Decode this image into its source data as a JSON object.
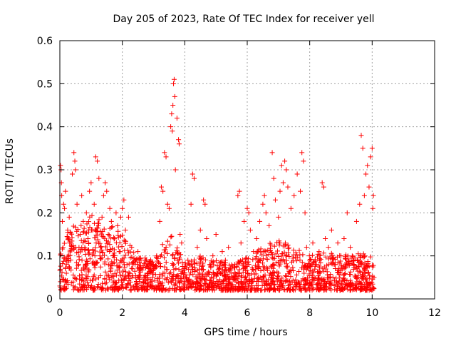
{
  "chart_data": {
    "type": "scatter",
    "title": "Day 205 of 2023, Rate Of TEC Index for receiver yell",
    "xlabel": "GPS time / hours",
    "ylabel": "ROTI / TECUs",
    "xlim": [
      0,
      12
    ],
    "ylim": [
      0,
      0.6
    ],
    "x_ticks": [
      0,
      2,
      4,
      6,
      8,
      10,
      12
    ],
    "y_ticks": [
      0,
      0.1,
      0.2,
      0.3,
      0.4,
      0.5,
      0.6
    ],
    "x_tick_labels": [
      "0",
      "2",
      "4",
      "6",
      "8",
      "10",
      "12"
    ],
    "y_tick_labels": [
      "0",
      "0.1",
      "0.2",
      "0.3",
      "0.4",
      "0.5",
      "0.6"
    ],
    "grid": true,
    "marker": "plus",
    "series": [
      {
        "name": "ROTI",
        "color": "#ff0000",
        "points": [
          [
            0.0,
            0.03
          ],
          [
            0.02,
            0.31
          ],
          [
            0.04,
            0.3
          ],
          [
            0.05,
            0.27
          ],
          [
            0.06,
            0.24
          ],
          [
            0.08,
            0.18
          ],
          [
            0.1,
            0.12
          ],
          [
            0.12,
            0.22
          ],
          [
            0.15,
            0.21
          ],
          [
            0.18,
            0.25
          ],
          [
            0.2,
            0.09
          ],
          [
            0.25,
            0.16
          ],
          [
            0.3,
            0.19
          ],
          [
            0.35,
            0.13
          ],
          [
            0.4,
            0.29
          ],
          [
            0.45,
            0.34
          ],
          [
            0.48,
            0.32
          ],
          [
            0.5,
            0.3
          ],
          [
            0.55,
            0.22
          ],
          [
            0.6,
            0.08
          ],
          [
            0.65,
            0.15
          ],
          [
            0.7,
            0.24
          ],
          [
            0.75,
            0.18
          ],
          [
            0.8,
            0.12
          ],
          [
            0.85,
            0.2
          ],
          [
            0.9,
            0.14
          ],
          [
            0.95,
            0.25
          ],
          [
            1.0,
            0.27
          ],
          [
            1.05,
            0.16
          ],
          [
            1.1,
            0.22
          ],
          [
            1.15,
            0.33
          ],
          [
            1.2,
            0.32
          ],
          [
            1.25,
            0.28
          ],
          [
            1.3,
            0.12
          ],
          [
            1.35,
            0.19
          ],
          [
            1.4,
            0.24
          ],
          [
            1.45,
            0.27
          ],
          [
            1.5,
            0.25
          ],
          [
            1.55,
            0.15
          ],
          [
            1.6,
            0.21
          ],
          [
            1.65,
            0.18
          ],
          [
            1.7,
            0.1
          ],
          [
            1.75,
            0.14
          ],
          [
            1.8,
            0.2
          ],
          [
            1.85,
            0.17
          ],
          [
            1.9,
            0.11
          ],
          [
            1.95,
            0.19
          ],
          [
            2.0,
            0.21
          ],
          [
            2.05,
            0.23
          ],
          [
            2.1,
            0.16
          ],
          [
            2.15,
            0.08
          ],
          [
            2.2,
            0.19
          ],
          [
            2.3,
            0.12
          ],
          [
            2.4,
            0.09
          ],
          [
            2.5,
            0.11
          ],
          [
            2.6,
            0.07
          ],
          [
            2.7,
            0.05
          ],
          [
            2.8,
            0.06
          ],
          [
            2.9,
            0.08
          ],
          [
            3.0,
            0.07
          ],
          [
            3.1,
            0.1
          ],
          [
            3.2,
            0.18
          ],
          [
            3.25,
            0.26
          ],
          [
            3.3,
            0.25
          ],
          [
            3.35,
            0.34
          ],
          [
            3.4,
            0.33
          ],
          [
            3.45,
            0.22
          ],
          [
            3.5,
            0.21
          ],
          [
            3.55,
            0.4
          ],
          [
            3.58,
            0.43
          ],
          [
            3.6,
            0.39
          ],
          [
            3.62,
            0.45
          ],
          [
            3.64,
            0.5
          ],
          [
            3.66,
            0.51
          ],
          [
            3.68,
            0.47
          ],
          [
            3.7,
            0.3
          ],
          [
            3.75,
            0.42
          ],
          [
            3.8,
            0.37
          ],
          [
            3.82,
            0.36
          ],
          [
            3.85,
            0.15
          ],
          [
            3.9,
            0.13
          ],
          [
            4.0,
            0.06
          ],
          [
            4.1,
            0.09
          ],
          [
            4.2,
            0.22
          ],
          [
            4.25,
            0.29
          ],
          [
            4.3,
            0.28
          ],
          [
            4.4,
            0.12
          ],
          [
            4.5,
            0.16
          ],
          [
            4.6,
            0.23
          ],
          [
            4.65,
            0.22
          ],
          [
            4.7,
            0.14
          ],
          [
            4.8,
            0.08
          ],
          [
            4.9,
            0.1
          ],
          [
            5.0,
            0.15
          ],
          [
            5.1,
            0.07
          ],
          [
            5.2,
            0.11
          ],
          [
            5.3,
            0.09
          ],
          [
            5.4,
            0.12
          ],
          [
            5.5,
            0.05
          ],
          [
            5.6,
            0.08
          ],
          [
            5.7,
            0.24
          ],
          [
            5.75,
            0.25
          ],
          [
            5.8,
            0.13
          ],
          [
            5.9,
            0.18
          ],
          [
            6.0,
            0.21
          ],
          [
            6.05,
            0.2
          ],
          [
            6.1,
            0.16
          ],
          [
            6.2,
            0.11
          ],
          [
            6.3,
            0.14
          ],
          [
            6.4,
            0.18
          ],
          [
            6.5,
            0.22
          ],
          [
            6.55,
            0.24
          ],
          [
            6.6,
            0.2
          ],
          [
            6.7,
            0.17
          ],
          [
            6.8,
            0.34
          ],
          [
            6.85,
            0.28
          ],
          [
            6.9,
            0.23
          ],
          [
            7.0,
            0.19
          ],
          [
            7.05,
            0.25
          ],
          [
            7.1,
            0.31
          ],
          [
            7.15,
            0.27
          ],
          [
            7.2,
            0.32
          ],
          [
            7.25,
            0.3
          ],
          [
            7.3,
            0.26
          ],
          [
            7.4,
            0.21
          ],
          [
            7.5,
            0.24
          ],
          [
            7.6,
            0.29
          ],
          [
            7.7,
            0.25
          ],
          [
            7.75,
            0.34
          ],
          [
            7.8,
            0.32
          ],
          [
            7.85,
            0.2
          ],
          [
            7.9,
            0.12
          ],
          [
            8.0,
            0.09
          ],
          [
            8.1,
            0.13
          ],
          [
            8.2,
            0.08
          ],
          [
            8.3,
            0.11
          ],
          [
            8.4,
            0.27
          ],
          [
            8.45,
            0.26
          ],
          [
            8.5,
            0.14
          ],
          [
            8.6,
            0.12
          ],
          [
            8.7,
            0.16
          ],
          [
            8.8,
            0.08
          ],
          [
            8.9,
            0.13
          ],
          [
            9.0,
            0.1
          ],
          [
            9.1,
            0.14
          ],
          [
            9.2,
            0.2
          ],
          [
            9.3,
            0.12
          ],
          [
            9.4,
            0.09
          ],
          [
            9.5,
            0.18
          ],
          [
            9.6,
            0.22
          ],
          [
            9.65,
            0.38
          ],
          [
            9.7,
            0.35
          ],
          [
            9.75,
            0.24
          ],
          [
            9.8,
            0.29
          ],
          [
            9.85,
            0.31
          ],
          [
            9.9,
            0.26
          ],
          [
            9.95,
            0.33
          ],
          [
            10.0,
            0.35
          ],
          [
            10.02,
            0.21
          ],
          [
            10.04,
            0.24
          ],
          [
            10.06,
            0.05
          ]
        ],
        "dense_band": {
          "x_range": [
            0,
            10.06
          ],
          "y_envelope": [
            [
              0,
              0.02,
              0.18
            ],
            [
              0.5,
              0.02,
              0.17
            ],
            [
              1.0,
              0.02,
              0.2
            ],
            [
              1.5,
              0.02,
              0.18
            ],
            [
              2.0,
              0.02,
              0.15
            ],
            [
              2.5,
              0.02,
              0.1
            ],
            [
              3.0,
              0.02,
              0.09
            ],
            [
              3.5,
              0.02,
              0.16
            ],
            [
              4.0,
              0.02,
              0.09
            ],
            [
              4.5,
              0.02,
              0.1
            ],
            [
              5.0,
              0.02,
              0.09
            ],
            [
              5.5,
              0.02,
              0.08
            ],
            [
              6.0,
              0.02,
              0.1
            ],
            [
              6.5,
              0.02,
              0.12
            ],
            [
              7.0,
              0.02,
              0.14
            ],
            [
              7.5,
              0.02,
              0.12
            ],
            [
              8.0,
              0.02,
              0.1
            ],
            [
              8.5,
              0.02,
              0.11
            ],
            [
              9.0,
              0.02,
              0.1
            ],
            [
              9.5,
              0.02,
              0.11
            ],
            [
              10.06,
              0.02,
              0.1
            ]
          ],
          "count": 1800
        }
      }
    ]
  }
}
